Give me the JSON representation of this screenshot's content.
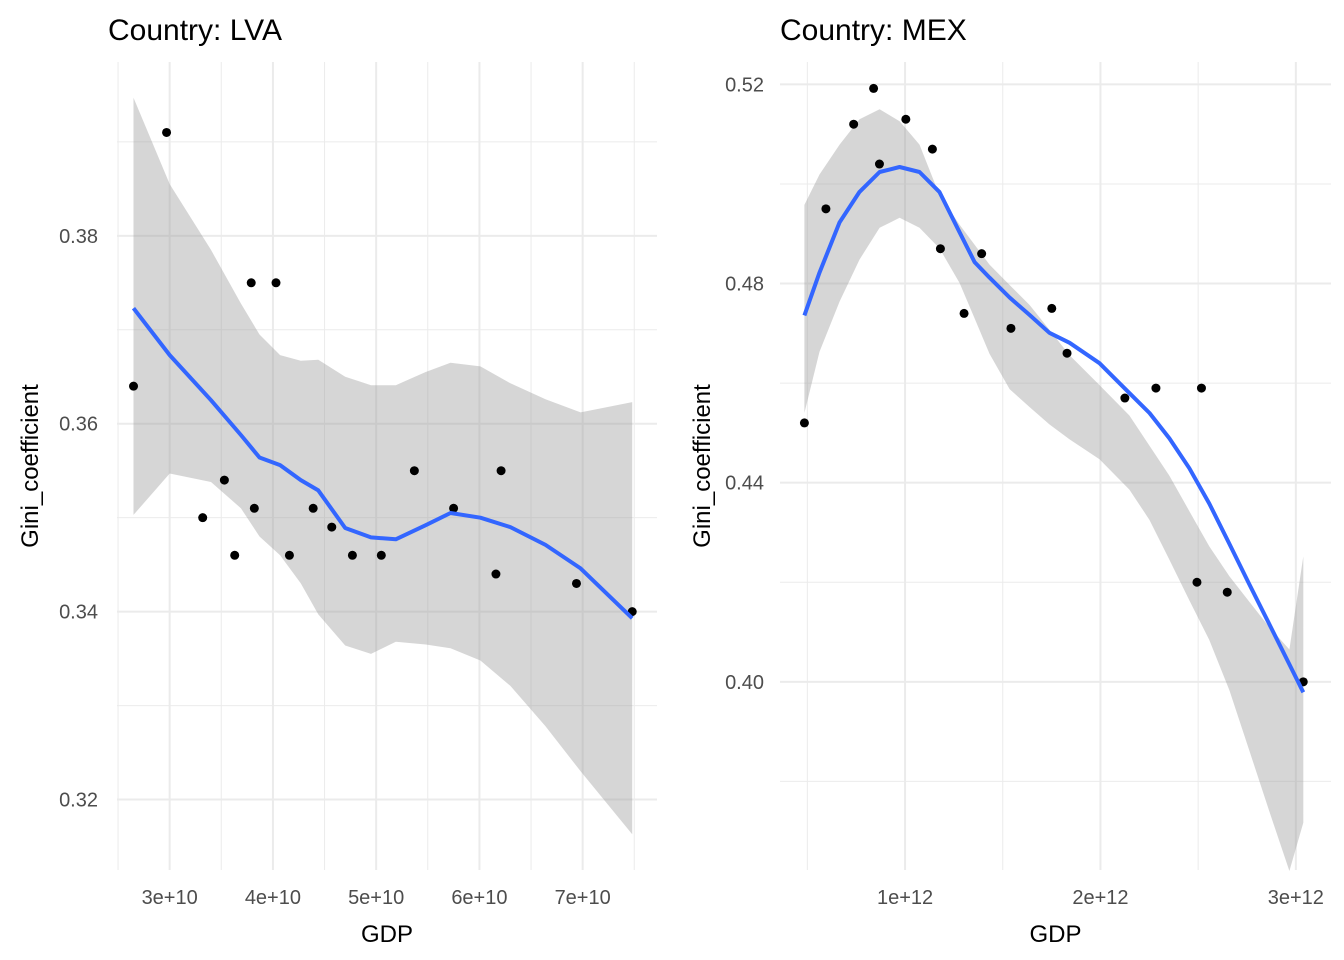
{
  "chart_data": [
    {
      "type": "scatter",
      "title": "Country: LVA",
      "xlabel": "GDP",
      "ylabel": "Gini_coefficient",
      "xlim": [
        24900000000.0,
        77200000000.0
      ],
      "ylim": [
        0.3125,
        0.3985
      ],
      "x_ticks": [
        30000000000.0,
        40000000000.0,
        50000000000.0,
        60000000000.0,
        70000000000.0
      ],
      "x_tick_labels": [
        "3e+10",
        "4e+10",
        "5e+10",
        "6e+10",
        "7e+10"
      ],
      "y_ticks": [
        0.32,
        0.34,
        0.36,
        0.38
      ],
      "y_tick_labels": [
        "0.32",
        "0.34",
        "0.36",
        "0.38"
      ],
      "grid": true,
      "points": {
        "x": [
          26500000000.0,
          29700000000.0,
          33200000000.0,
          35300000000.0,
          36300000000.0,
          37900000000.0,
          38200000000.0,
          40300000000.0,
          41600000000.0,
          43900000000.0,
          45700000000.0,
          47700000000.0,
          50500000000.0,
          53700000000.0,
          57500000000.0,
          61600000000.0,
          62100000000.0,
          69400000000.0,
          74800000000.0
        ],
        "y": [
          0.364,
          0.391,
          0.35,
          0.354,
          0.346,
          0.375,
          0.351,
          0.375,
          0.346,
          0.351,
          0.349,
          0.346,
          0.346,
          0.355,
          0.351,
          0.344,
          0.355,
          0.343,
          0.34
        ]
      },
      "smooth": {
        "method": "loess",
        "color": "#3366FF",
        "x": [
          26500000000.0,
          30000000000.0,
          34000000000.0,
          36900000000.0,
          38700000000.0,
          40700000000.0,
          42700000000.0,
          44400000000.0,
          47000000000.0,
          49500000000.0,
          51900000000.0,
          54800000000.0,
          57200000000.0,
          60100000000.0,
          63000000000.0,
          66400000000.0,
          69800000000.0,
          74800000000.0
        ],
        "y": [
          0.3723,
          0.3673,
          0.3625,
          0.3588,
          0.3564,
          0.3556,
          0.354,
          0.3529,
          0.3489,
          0.3479,
          0.3477,
          0.3492,
          0.3505,
          0.35,
          0.349,
          0.3471,
          0.3446,
          0.3393
        ],
        "ribbon_upper": [
          0.3947,
          0.3855,
          0.3785,
          0.3728,
          0.3695,
          0.3673,
          0.3667,
          0.3668,
          0.365,
          0.3641,
          0.3641,
          0.3655,
          0.3665,
          0.3661,
          0.3643,
          0.3626,
          0.3612,
          0.3623
        ],
        "ribbon_lower": [
          0.3503,
          0.3547,
          0.3538,
          0.351,
          0.348,
          0.346,
          0.343,
          0.3397,
          0.3364,
          0.3355,
          0.3368,
          0.3365,
          0.3361,
          0.3348,
          0.3321,
          0.3278,
          0.323,
          0.3163
        ]
      }
    },
    {
      "type": "scatter",
      "title": "Country: MEX",
      "xlabel": "GDP",
      "ylabel": "Gini_coefficient",
      "xlim": [
        360000000000.0,
        3180000000000.0
      ],
      "ylim": [
        0.3622,
        0.5245
      ],
      "x_ticks": [
        1000000000000.0,
        2000000000000.0,
        3000000000000.0
      ],
      "x_tick_labels": [
        "1e+12",
        "2e+12",
        "3e+12"
      ],
      "y_ticks": [
        0.4,
        0.44,
        0.48,
        0.52
      ],
      "y_tick_labels": [
        "0.40",
        "0.44",
        "0.48",
        "0.52"
      ],
      "grid": true,
      "points": {
        "x": [
          485000000000.0,
          595000000000.0,
          737000000000.0,
          839000000000.0,
          869000000000.0,
          1004000000000.0,
          1140000000000.0,
          1181000000000.0,
          1392000000000.0,
          1302000000000.0,
          1542000000000.0,
          1751000000000.0,
          1829000000000.0,
          2125000000000.0,
          2284000000000.0,
          2494000000000.0,
          2517000000000.0,
          2649000000000.0,
          3038000000000.0
        ],
        "y": [
          0.452,
          0.495,
          0.512,
          0.5192,
          0.504,
          0.513,
          0.507,
          0.487,
          0.486,
          0.474,
          0.471,
          0.475,
          0.466,
          0.457,
          0.459,
          0.42,
          0.459,
          0.418,
          0.4
        ],
        "sizes_note": "points only, no labels"
      },
      "smooth": {
        "method": "loess",
        "color": "#3366FF",
        "x": [
          485000000000.0,
          562000000000.0,
          665000000000.0,
          767000000000.0,
          870000000000.0,
          972000000000.0,
          1074000000000.0,
          1176000000000.0,
          1279000000000.0,
          1356000000000.0,
          1432000000000.0,
          1535000000000.0,
          1637000000000.0,
          1739000000000.0,
          1842000000000.0,
          1995000000000.0,
          2148000000000.0,
          2251000000000.0,
          2353000000000.0,
          2455000000000.0,
          2557000000000.0,
          2660000000000.0,
          2762000000000.0,
          2864000000000.0,
          2967000000000.0,
          3038000000000.0
        ],
        "y": [
          0.4736,
          0.4822,
          0.4923,
          0.4984,
          0.5024,
          0.5034,
          0.5024,
          0.4984,
          0.4903,
          0.4843,
          0.4812,
          0.4772,
          0.4737,
          0.4701,
          0.4681,
          0.464,
          0.458,
          0.454,
          0.4489,
          0.4429,
          0.4358,
          0.4277,
          0.4196,
          0.4116,
          0.4035,
          0.3979
        ],
        "ribbon_upper": [
          0.4958,
          0.5019,
          0.5079,
          0.513,
          0.515,
          0.5126,
          0.5079,
          0.4978,
          0.4918,
          0.4878,
          0.4838,
          0.4797,
          0.4757,
          0.4707,
          0.4656,
          0.4596,
          0.4535,
          0.4474,
          0.4414,
          0.4343,
          0.4272,
          0.4212,
          0.4161,
          0.411,
          0.4065,
          0.4252
        ],
        "ribbon_lower": [
          0.454,
          0.4663,
          0.4764,
          0.4848,
          0.4912,
          0.4932,
          0.4912,
          0.4871,
          0.4801,
          0.473,
          0.4659,
          0.4588,
          0.4552,
          0.4517,
          0.4487,
          0.4447,
          0.4386,
          0.4325,
          0.4245,
          0.4164,
          0.4084,
          0.3983,
          0.3862,
          0.374,
          0.362,
          0.3717
        ]
      }
    }
  ]
}
